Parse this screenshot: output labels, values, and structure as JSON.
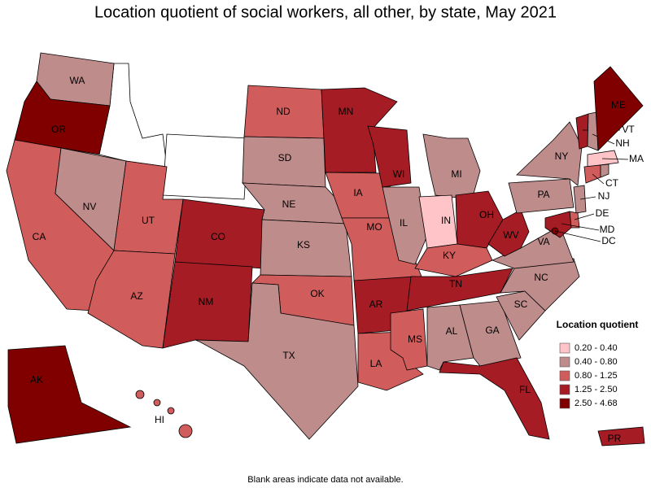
{
  "title": "Location quotient of social workers, all other, by state, May 2021",
  "legend": {
    "title": "Location quotient",
    "items": [
      {
        "label": "0.20 - 0.40",
        "color": "#ffc4c8"
      },
      {
        "label": "0.40 - 0.80",
        "color": "#bf8c8c"
      },
      {
        "label": "0.80 - 1.25",
        "color": "#d15c5c"
      },
      {
        "label": "1.25 - 2.50",
        "color": "#a51c24"
      },
      {
        "label": "2.50 - 4.68",
        "color": "#800000"
      }
    ]
  },
  "states": [
    {
      "label": "WA",
      "class": "0.40 - 0.80"
    },
    {
      "label": "OR",
      "class": "2.50 - 4.68"
    },
    {
      "label": "CA",
      "class": "0.80 - 1.25"
    },
    {
      "label": "NV",
      "class": "0.40 - 0.80"
    },
    {
      "label": "UT",
      "class": "0.80 - 1.25"
    },
    {
      "label": "AZ",
      "class": "0.80 - 1.25"
    },
    {
      "label": "CO",
      "class": "1.25 - 2.50"
    },
    {
      "label": "NM",
      "class": "1.25 - 2.50"
    },
    {
      "label": "ND",
      "class": "0.80 - 1.25"
    },
    {
      "label": "SD",
      "class": "0.40 - 0.80"
    },
    {
      "label": "NE",
      "class": "0.40 - 0.80"
    },
    {
      "label": "KS",
      "class": "0.40 - 0.80"
    },
    {
      "label": "OK",
      "class": "0.80 - 1.25"
    },
    {
      "label": "TX",
      "class": "0.40 - 0.80"
    },
    {
      "label": "MN",
      "class": "1.25 - 2.50"
    },
    {
      "label": "IA",
      "class": "0.80 - 1.25"
    },
    {
      "label": "MO",
      "class": "0.80 - 1.25"
    },
    {
      "label": "AR",
      "class": "1.25 - 2.50"
    },
    {
      "label": "LA",
      "class": "0.80 - 1.25"
    },
    {
      "label": "WI",
      "class": "1.25 - 2.50"
    },
    {
      "label": "IL",
      "class": "0.40 - 0.80"
    },
    {
      "label": "MI",
      "class": "0.40 - 0.80"
    },
    {
      "label": "IN",
      "class": "0.20 - 0.40"
    },
    {
      "label": "OH",
      "class": "1.25 - 2.50"
    },
    {
      "label": "KY",
      "class": "0.80 - 1.25"
    },
    {
      "label": "TN",
      "class": "1.25 - 2.50"
    },
    {
      "label": "MS",
      "class": "0.80 - 1.25"
    },
    {
      "label": "AL",
      "class": "0.40 - 0.80"
    },
    {
      "label": "GA",
      "class": "0.40 - 0.80"
    },
    {
      "label": "FL",
      "class": "1.25 - 2.50"
    },
    {
      "label": "SC",
      "class": "0.40 - 0.80"
    },
    {
      "label": "NC",
      "class": "0.40 - 0.80"
    },
    {
      "label": "VA",
      "class": "0.40 - 0.80"
    },
    {
      "label": "WV",
      "class": "1.25 - 2.50"
    },
    {
      "label": "PA",
      "class": "0.40 - 0.80"
    },
    {
      "label": "NY",
      "class": "0.40 - 0.80"
    },
    {
      "label": "VT",
      "class": "1.25 - 2.50"
    },
    {
      "label": "NH",
      "class": "0.40 - 0.80"
    },
    {
      "label": "ME",
      "class": "2.50 - 4.68"
    },
    {
      "label": "MA",
      "class": "0.20 - 0.40"
    },
    {
      "label": "CT",
      "class": "0.80 - 1.25"
    },
    {
      "label": null,
      "class": "0.40 - 0.80"
    },
    {
      "label": "NJ",
      "class": "0.40 - 0.80"
    },
    {
      "label": "DE",
      "class": "0.80 - 1.25"
    },
    {
      "label": "MD",
      "class": "1.25 - 2.50"
    },
    {
      "label": "DC",
      "class": "2.50 - 4.68"
    },
    {
      "label": "AK",
      "class": "2.50 - 4.68"
    },
    {
      "label": "HI",
      "class": "0.80 - 1.25"
    },
    {
      "label": "PR",
      "class": "1.25 - 2.50"
    }
  ],
  "footnote": "Blank areas indicate data not available."
}
